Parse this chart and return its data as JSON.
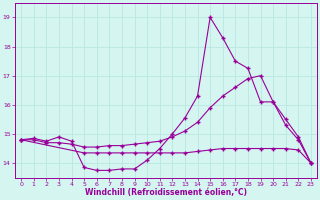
{
  "xlabel": "Windchill (Refroidissement éolien,°C)",
  "xlim": [
    -0.5,
    23.5
  ],
  "ylim": [
    13.5,
    19.5
  ],
  "yticks": [
    14,
    15,
    16,
    17,
    18,
    19
  ],
  "xticks": [
    0,
    1,
    2,
    3,
    4,
    5,
    6,
    7,
    8,
    9,
    10,
    11,
    12,
    13,
    14,
    15,
    16,
    17,
    18,
    19,
    20,
    21,
    22,
    23
  ],
  "bg_color": "#d4f5f0",
  "line_color": "#990099",
  "grid_color": "#b8e8e0",
  "line1": {
    "x": [
      0,
      1,
      2,
      3,
      4,
      5,
      6,
      7,
      8,
      9,
      10,
      11,
      12,
      13,
      14,
      15,
      16,
      17,
      18,
      19,
      20,
      21,
      22,
      23
    ],
    "y": [
      14.8,
      14.85,
      14.75,
      14.9,
      14.75,
      13.85,
      13.75,
      13.75,
      13.8,
      13.8,
      14.1,
      14.5,
      15.0,
      15.55,
      16.3,
      19.0,
      18.3,
      17.5,
      17.25,
      16.1,
      16.1,
      15.3,
      14.8,
      14.0
    ]
  },
  "line2": {
    "x": [
      0,
      1,
      2,
      3,
      4,
      5,
      6,
      7,
      8,
      9,
      10,
      11,
      12,
      13,
      14,
      15,
      16,
      17,
      18,
      19,
      20,
      21,
      22,
      23
    ],
    "y": [
      14.8,
      14.8,
      14.7,
      14.7,
      14.65,
      14.55,
      14.55,
      14.6,
      14.6,
      14.65,
      14.7,
      14.75,
      14.9,
      15.1,
      15.4,
      15.9,
      16.3,
      16.6,
      16.9,
      17.0,
      16.1,
      15.5,
      14.9,
      14.0
    ]
  },
  "line3": {
    "x": [
      0,
      5,
      6,
      7,
      8,
      9,
      10,
      11,
      12,
      13,
      14,
      15,
      16,
      17,
      18,
      19,
      20,
      21,
      22,
      23
    ],
    "y": [
      14.8,
      14.35,
      14.35,
      14.35,
      14.35,
      14.35,
      14.35,
      14.35,
      14.35,
      14.35,
      14.4,
      14.45,
      14.5,
      14.5,
      14.5,
      14.5,
      14.5,
      14.5,
      14.45,
      14.0
    ]
  }
}
